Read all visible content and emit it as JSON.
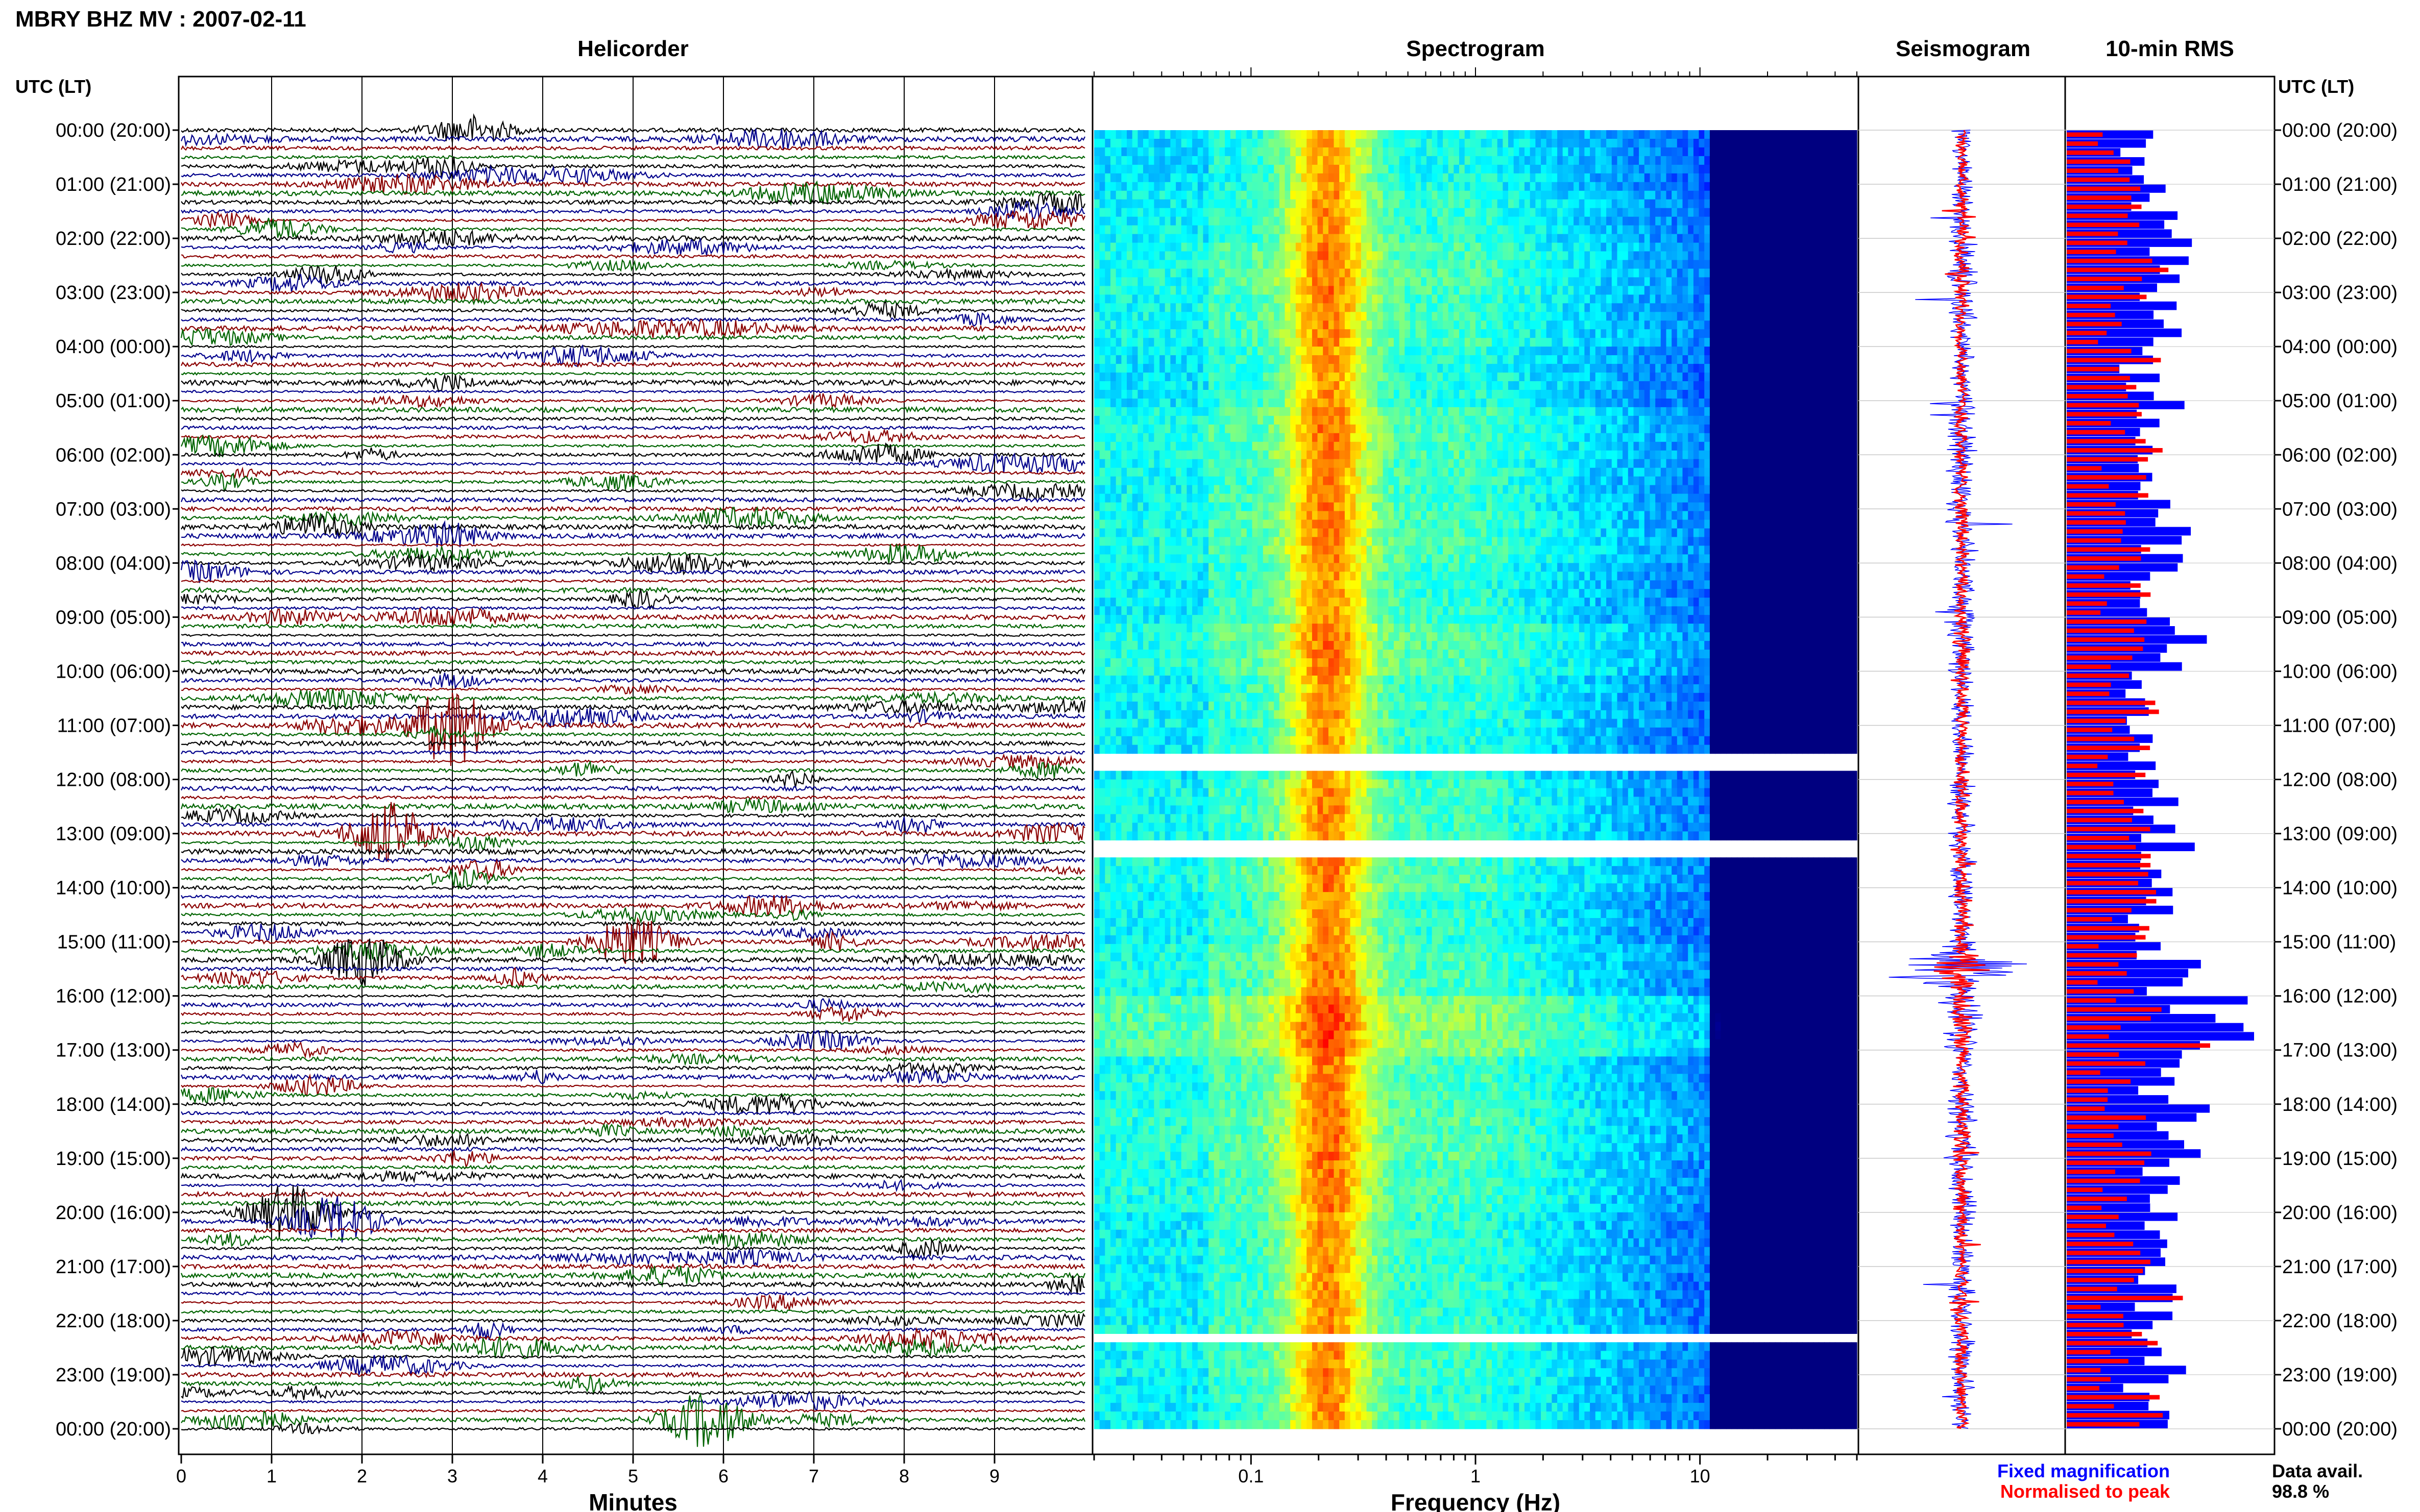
{
  "header": {
    "title": "MBRY BHZ MV : 2007-02-11",
    "left_axis_label": "UTC (LT)",
    "right_axis_label": "UTC (LT)"
  },
  "panels": {
    "helicorder": "Helicorder",
    "spectrogram": "Spectrogram",
    "seismogram": "Seismogram",
    "rms": "10-min RMS"
  },
  "legend": {
    "fixed": "Fixed magnification",
    "normalised": "Normalised to peak",
    "fixed_color": "#0000ff",
    "normalised_color": "#ff0000"
  },
  "data_avail": {
    "label": "Data avail.",
    "value": "98.8 %"
  },
  "chart_data": [
    {
      "type": "line",
      "name": "Helicorder",
      "xlabel": "Minutes",
      "xlim": [
        0,
        10
      ],
      "x_ticks": [
        "0",
        "1",
        "2",
        "3",
        "4",
        "5",
        "6",
        "7",
        "8",
        "9"
      ],
      "row_time_labels": [
        "00:00 (20:00)",
        "01:00 (21:00)",
        "02:00 (22:00)",
        "03:00 (23:00)",
        "04:00 (00:00)",
        "05:00 (01:00)",
        "06:00 (02:00)",
        "07:00 (03:00)",
        "08:00 (04:00)",
        "09:00 (05:00)",
        "10:00 (06:00)",
        "11:00 (07:00)",
        "12:00 (08:00)",
        "13:00 (09:00)",
        "14:00 (10:00)",
        "15:00 (11:00)",
        "16:00 (12:00)",
        "17:00 (13:00)",
        "18:00 (14:00)",
        "19:00 (15:00)",
        "20:00 (16:00)",
        "21:00 (17:00)",
        "22:00 (18:00)",
        "23:00 (19:00)",
        "00:00 (20:00)"
      ],
      "rows_per_hour": 6,
      "trace_colors": [
        "#000000",
        "#00008b",
        "#8b0000",
        "#006400"
      ],
      "notable_events": [
        {
          "row": 0,
          "minute": 3.2,
          "amp": 0.9
        },
        {
          "row": 44,
          "minute": 1.5,
          "amp": 0.8
        },
        {
          "row": 66,
          "minute": 3.0,
          "amp": 2.6
        },
        {
          "row": 78,
          "minute": 2.3,
          "amp": 2.0
        },
        {
          "row": 90,
          "minute": 5.0,
          "amp": 1.6
        },
        {
          "row": 92,
          "minute": 2.0,
          "amp": 1.6
        },
        {
          "row": 120,
          "minute": 1.2,
          "amp": 1.8
        },
        {
          "row": 121,
          "minute": 1.7,
          "amp": 1.6
        },
        {
          "row": 143,
          "minute": 5.8,
          "amp": 1.8
        }
      ]
    },
    {
      "type": "heatmap",
      "name": "Spectrogram",
      "xlabel": "Frequency (Hz)",
      "x_scale": "log",
      "xlim": [
        0.02,
        50
      ],
      "x_ticks": [
        "0.1",
        "1",
        "10"
      ],
      "colormap": "jet",
      "peak_band_hz": [
        0.15,
        0.3
      ],
      "gaps_hours": [
        11.6,
        13.15,
        13.25,
        22.25
      ]
    },
    {
      "type": "line",
      "name": "Seismogram",
      "series": [
        {
          "name": "Fixed magnification",
          "color": "#0000ff",
          "peak_hour": 15.5
        },
        {
          "name": "Normalised to peak",
          "color": "#ff0000"
        }
      ]
    },
    {
      "type": "bar",
      "name": "10-min RMS",
      "orientation": "horizontal",
      "series": [
        {
          "name": "Fixed magnification",
          "color": "#0000ff"
        },
        {
          "name": "Normalised to peak",
          "color": "#ff0000"
        }
      ],
      "hourly_relative_level": [
        0.4,
        0.5,
        0.6,
        0.55,
        0.45,
        0.6,
        0.55,
        0.6,
        0.5,
        0.65,
        0.5,
        0.45,
        0.55,
        0.6,
        0.5,
        0.6,
        0.85,
        0.6,
        0.65,
        0.6,
        0.5,
        0.5,
        0.55,
        0.5,
        0.5
      ]
    }
  ]
}
